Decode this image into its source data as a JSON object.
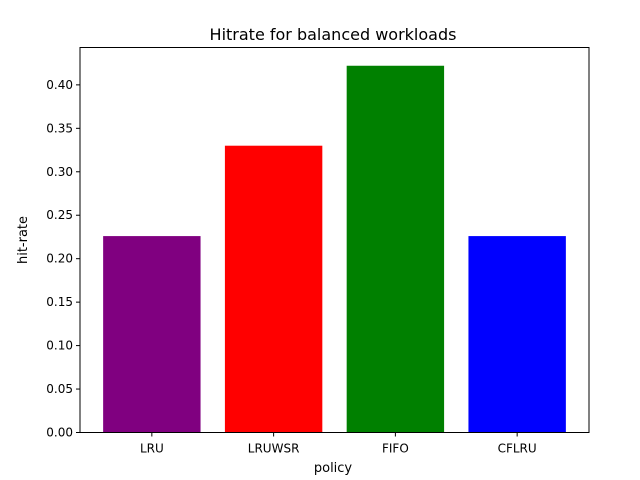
{
  "chart_data": {
    "type": "bar",
    "title": "Hitrate for balanced workloads",
    "xlabel": "policy",
    "ylabel": "hit-rate",
    "categories": [
      "LRU",
      "LRUWSR",
      "FIFO",
      "CFLRU"
    ],
    "values": [
      0.226,
      0.33,
      0.422,
      0.226
    ],
    "colors": [
      "#800080",
      "#ff0000",
      "#008000",
      "#0000ff"
    ],
    "ylim": [
      0,
      0.443
    ],
    "yticks": [
      0.0,
      0.05,
      0.1,
      0.15,
      0.2,
      0.25,
      0.3,
      0.35,
      0.4
    ],
    "ytick_labels": [
      "0.00",
      "0.05",
      "0.10",
      "0.15",
      "0.20",
      "0.25",
      "0.30",
      "0.35",
      "0.40"
    ],
    "grid": false,
    "legend": "none"
  }
}
